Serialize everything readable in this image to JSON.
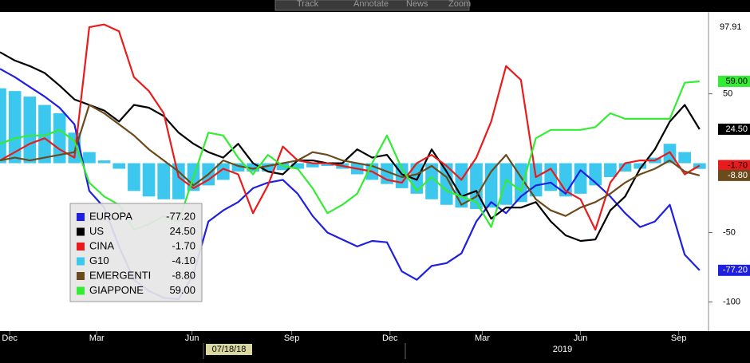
{
  "toolbar": {
    "buttons": [
      "Track",
      "Annotate",
      "News",
      "Zoom"
    ]
  },
  "chart_data": {
    "type": "line",
    "ylim": [
      -121,
      109
    ],
    "yticks": [
      -100,
      -50,
      50
    ],
    "top_value": {
      "value": 97.91,
      "label": "97.91"
    },
    "xlim": [
      0,
      47.6
    ],
    "xticks": [
      {
        "value": 0.65,
        "label": "Dec"
      },
      {
        "value": 6.5,
        "label": "Mar"
      },
      {
        "value": 12.9,
        "label": "Jun"
      },
      {
        "value": 19.6,
        "label": "Sep"
      },
      {
        "value": 26.2,
        "label": "Dec"
      },
      {
        "value": 32.4,
        "label": "Mar"
      },
      {
        "value": 39,
        "label": "Jun"
      },
      {
        "value": 45.6,
        "label": "Sep"
      }
    ],
    "cursor_date": "07/18/18",
    "year_label": "2019",
    "grid": false,
    "series": [
      {
        "name": "EUROPA",
        "color": "#1f1fe0",
        "style": "line",
        "last": {
          "value": -77.2,
          "label": "-77.20"
        },
        "values": [
          68,
          62,
          55,
          48,
          40,
          28,
          -20,
          -32,
          -60,
          -84,
          -92,
          -97,
          -98,
          -80,
          -42,
          -34,
          -28,
          -18,
          -14,
          -12,
          -22,
          -38,
          -50,
          -55,
          -60,
          -56,
          -57,
          -78,
          -84,
          -74,
          -72,
          -65,
          -42,
          -28,
          -36,
          -24,
          -16,
          -14,
          -22,
          -5,
          -14,
          -24,
          -36,
          -46,
          -42,
          -30,
          -66,
          -77.2
        ]
      },
      {
        "name": "US",
        "color": "#000000",
        "style": "line",
        "last": {
          "value": 24.5,
          "label": "24.50"
        },
        "values": [
          80,
          74,
          70,
          65,
          56,
          46,
          42,
          38,
          30,
          42,
          40,
          34,
          22,
          14,
          8,
          4,
          14,
          0,
          -6,
          -8,
          2,
          2,
          0,
          0,
          10,
          4,
          6,
          -8,
          -12,
          10,
          -6,
          -24,
          -20,
          -40,
          -32,
          -32,
          -28,
          -42,
          -52,
          -56,
          -55,
          -34,
          -24,
          -4,
          10,
          30,
          42,
          24.5
        ]
      },
      {
        "name": "CINA",
        "color": "#e81c1c",
        "style": "line",
        "last": {
          "value": -1.7,
          "label": "-1.70"
        },
        "values": [
          2,
          8,
          14,
          18,
          10,
          4,
          98,
          100,
          95,
          62,
          52,
          36,
          -10,
          -18,
          -12,
          -4,
          -8,
          -36,
          -16,
          12,
          2,
          0,
          0,
          -2,
          -4,
          -6,
          -12,
          -14,
          0,
          6,
          -2,
          -12,
          4,
          30,
          70,
          60,
          -10,
          -4,
          -20,
          -26,
          -48,
          -14,
          0,
          2,
          2,
          8,
          -8,
          -1.7
        ]
      },
      {
        "name": "G10",
        "color": "#3cc8ee",
        "style": "bars",
        "last": {
          "value": -4.1,
          "label": "-4.10"
        },
        "values": [
          54,
          52,
          48,
          42,
          36,
          22,
          8,
          2,
          -4,
          -20,
          -24,
          -26,
          -26,
          -20,
          -16,
          -12,
          -6,
          -6,
          -6,
          -5,
          -4,
          -3,
          -2,
          -4,
          -8,
          -12,
          -15,
          -18,
          -22,
          -26,
          -30,
          -32,
          -33,
          -32,
          -30,
          -28,
          -24,
          -20,
          -24,
          -22,
          -16,
          -10,
          -6,
          -4,
          4,
          14,
          8,
          -4.1
        ]
      },
      {
        "name": "EMERGENTI",
        "color": "#6b4a1c",
        "style": "line",
        "last": {
          "value": -8.8,
          "label": "-8.80"
        },
        "values": [
          2,
          4,
          2,
          4,
          6,
          8,
          42,
          36,
          28,
          20,
          10,
          2,
          -6,
          -16,
          -8,
          2,
          -2,
          -4,
          -2,
          0,
          2,
          8,
          6,
          2,
          0,
          -2,
          -6,
          -10,
          -8,
          -2,
          -10,
          -30,
          -24,
          -6,
          6,
          -10,
          -26,
          -34,
          -38,
          -32,
          -28,
          -22,
          -14,
          -8,
          -4,
          2,
          -6,
          -8.8
        ]
      },
      {
        "name": "GIAPPONE",
        "color": "#34ec34",
        "style": "line",
        "last": {
          "value": 59,
          "label": "59.00"
        },
        "values": [
          14,
          18,
          20,
          20,
          24,
          16,
          -14,
          -24,
          -30,
          -48,
          -44,
          -38,
          -42,
          -10,
          22,
          20,
          4,
          -8,
          6,
          -2,
          -4,
          -18,
          -36,
          -30,
          -22,
          0,
          20,
          -4,
          -20,
          -10,
          -20,
          -24,
          -28,
          -46,
          -12,
          -20,
          18,
          24,
          24,
          24,
          26,
          36,
          32,
          32,
          32,
          32,
          58,
          59
        ]
      }
    ]
  }
}
